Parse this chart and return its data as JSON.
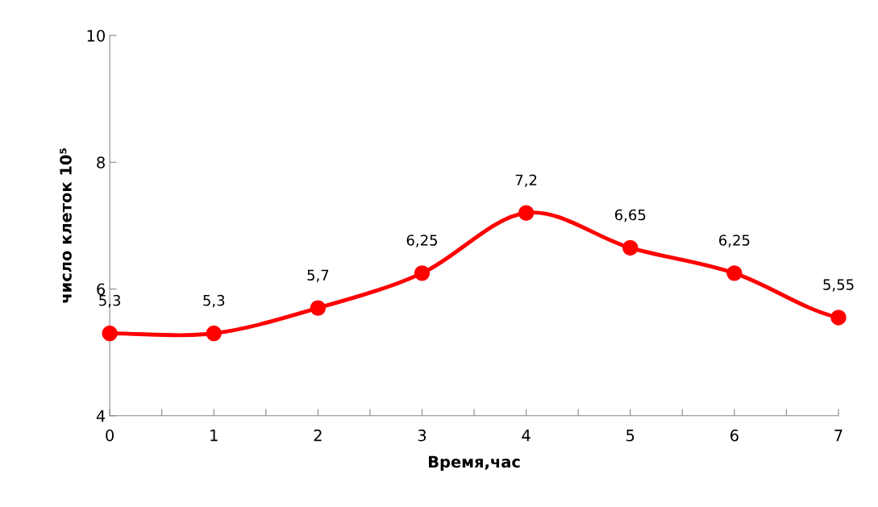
{
  "chart_data": {
    "type": "line",
    "xlabel": "Время,час",
    "ylabel": "число клеток 10⁵",
    "x": [
      0,
      1,
      2,
      3,
      4,
      5,
      6,
      7
    ],
    "series": [
      {
        "color": "#ff0000",
        "values": [
          5.3,
          5.3,
          5.7,
          6.25,
          7.2,
          6.65,
          6.25,
          5.55
        ],
        "value_labels": [
          "5,3",
          "5,3",
          "5,7",
          "6,25",
          "7,2",
          "6,65",
          "6,25",
          "5,55"
        ]
      }
    ],
    "xlim": [
      0,
      7
    ],
    "xticks": [
      0,
      {
        "value": 0.5,
        "label": null
      },
      1,
      {
        "value": 1.5,
        "label": null
      },
      2,
      {
        "value": 2.5,
        "label": null
      },
      3,
      {
        "value": 3.5,
        "label": null
      },
      4,
      {
        "value": 4.5,
        "label": null
      },
      5,
      {
        "value": 5.5,
        "label": null
      },
      6,
      {
        "value": 6.5,
        "label": null
      },
      7
    ],
    "ylim": [
      4,
      10
    ],
    "yticks": [
      4,
      6,
      8,
      10
    ],
    "grid": false,
    "legend": false,
    "marker": "circle",
    "line_style": "solid"
  }
}
